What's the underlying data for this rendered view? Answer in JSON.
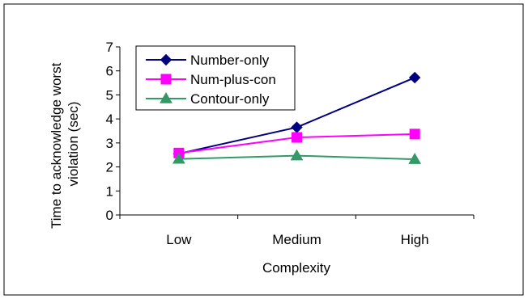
{
  "chart_data": {
    "type": "line",
    "title": "",
    "xlabel": "Complexity",
    "ylabel": "Time to acknowledge worst violation (sec)",
    "ylabel_lines": [
      "Time to acknowledge worst",
      "violation (sec)"
    ],
    "categories": [
      "Low",
      "Medium",
      "High"
    ],
    "ylim": [
      0,
      7
    ],
    "yticks": [
      "0",
      "1",
      "2",
      "3",
      "4",
      "5",
      "6",
      "7"
    ],
    "grid": false,
    "legend_position": "top-left",
    "series": [
      {
        "name": "Number-only",
        "values": [
          2.55,
          3.65,
          5.72
        ],
        "color": "#000080",
        "marker": "diamond"
      },
      {
        "name": "Num-plus-con",
        "values": [
          2.58,
          3.23,
          3.37
        ],
        "color": "#ff00ff",
        "marker": "square"
      },
      {
        "name": "Contour-only",
        "values": [
          2.33,
          2.47,
          2.32
        ],
        "color": "#339966",
        "marker": "triangle"
      }
    ]
  }
}
